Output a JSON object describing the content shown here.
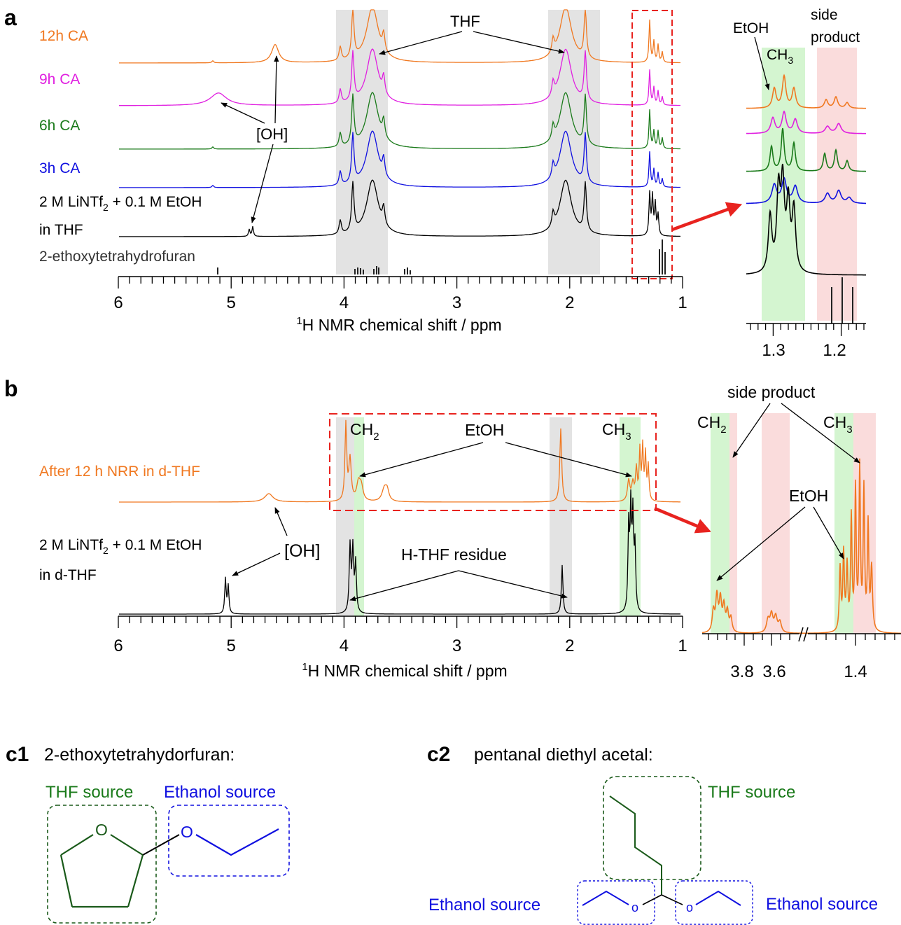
{
  "panel_a": {
    "panel_label": "a",
    "traces": [
      {
        "label": "12h CA",
        "color": "#f07820"
      },
      {
        "label": "9h CA",
        "color": "#e020e0"
      },
      {
        "label": "6h CA",
        "color": "#1a7a1a"
      },
      {
        "label": "3h CA",
        "color": "#1010e0"
      },
      {
        "label": "2 M LiNTf2 + 0.1 M EtOH in THF",
        "color": "#000000"
      }
    ],
    "ref_label": "2-ethoxytetrahydrofuran",
    "annotations": {
      "thf": "THF",
      "oh": "[OH]"
    },
    "xlabel": "1H NMR chemical shift / ppm",
    "ticks": [
      "6",
      "5",
      "4",
      "3",
      "2",
      "1"
    ],
    "inset": {
      "etoh": "EtOH",
      "ch3": "CH3",
      "side_line1": "side",
      "side_line2": "product",
      "ticks": [
        "1.3",
        "1.2"
      ]
    }
  },
  "panel_b": {
    "panel_label": "b",
    "traces": [
      {
        "label": "After 12 h NRR in d-THF",
        "color": "#f07820"
      },
      {
        "label": "2 M LiNTf2 + 0.1 M EtOH in d-THF",
        "color": "#000000"
      }
    ],
    "annotations": {
      "ch2": "CH2",
      "ch3": "CH3",
      "etoh": "EtOH",
      "oh": "[OH]",
      "hthf": "H-THF residue"
    },
    "xlabel": "1H NMR chemical shift / ppm",
    "ticks": [
      "6",
      "5",
      "4",
      "3",
      "2",
      "1"
    ],
    "inset": {
      "side_product": "side product",
      "ch2": "CH2",
      "ch3": "CH3",
      "etoh": "EtOH",
      "ticks": [
        "3.8",
        "3.6",
        "1.4"
      ]
    }
  },
  "panel_c1": {
    "panel_label": "c1",
    "title": "2-ethoxytetrahydorfuran:",
    "thf_source": "THF source",
    "ethanol_source": "Ethanol source",
    "atom_o": "O"
  },
  "panel_c2": {
    "panel_label": "c2",
    "title": "pentanal diethyl acetal:",
    "thf_source": "THF source",
    "ethanol_source": "Ethanol source",
    "atom_o": "o"
  },
  "chart_data": [
    {
      "type": "line",
      "title": "",
      "xlabel": "1H NMR chemical shift / ppm",
      "ylabel": "",
      "xlim": [
        6,
        1
      ],
      "x_ticks": [
        6,
        5,
        4,
        3,
        2,
        1
      ],
      "series": [
        {
          "name": "12h CA",
          "peaks_ppm": [
            4.6,
            3.73,
            1.88,
            1.27
          ]
        },
        {
          "name": "9h CA",
          "peaks_ppm": [
            5.1,
            3.73,
            1.88,
            1.27
          ]
        },
        {
          "name": "6h CA",
          "peaks_ppm": [
            3.73,
            1.88,
            1.27
          ]
        },
        {
          "name": "3h CA",
          "peaks_ppm": [
            3.73,
            1.88,
            1.27
          ]
        },
        {
          "name": "2 M LiNTf2 + 0.1 M EtOH in THF",
          "peaks_ppm": [
            4.8,
            3.73,
            1.88,
            1.27
          ]
        },
        {
          "name": "2-ethoxytetrahydrofuran",
          "peaks_ppm": [
            5.12,
            3.85,
            3.72,
            3.43,
            1.21,
            1.19,
            1.17
          ]
        }
      ],
      "shaded_regions_ppm": [
        [
          4.05,
          3.6
        ],
        [
          2.2,
          1.75
        ]
      ]
    },
    {
      "type": "line",
      "title": "",
      "xlabel": "",
      "ylabel": "",
      "x_ticks": [
        1.3,
        1.2
      ],
      "series": [
        {
          "name": "12h CA"
        },
        {
          "name": "9h CA"
        },
        {
          "name": "6h CA"
        },
        {
          "name": "3h CA"
        },
        {
          "name": "2 M LiNTf2 + 0.1 M EtOH in THF"
        },
        {
          "name": "2-ethoxytetrahydrofuran"
        }
      ]
    },
    {
      "type": "line",
      "title": "",
      "xlabel": "1H NMR chemical shift / ppm",
      "ylabel": "",
      "xlim": [
        6,
        1
      ],
      "x_ticks": [
        6,
        5,
        4,
        3,
        2,
        1
      ],
      "series": [
        {
          "name": "After 12 h NRR in d-THF",
          "peaks_ppm": [
            4.67,
            3.98,
            3.9,
            3.65,
            2.08,
            1.45,
            1.38
          ]
        },
        {
          "name": "2 M LiNTf2 + 0.1 M EtOH in d-THF",
          "peaks_ppm": [
            5.04,
            3.94,
            2.08,
            1.47
          ]
        }
      ],
      "shaded_regions_ppm": [
        [
          4.05,
          3.85
        ],
        [
          2.2,
          2.0
        ],
        [
          1.6,
          1.38
        ]
      ]
    },
    {
      "type": "line",
      "title": "",
      "xlabel": "",
      "ylabel": "",
      "x_ticks": [
        3.8,
        3.6,
        1.4
      ],
      "series": [
        {
          "name": "After 12 h NRR in d-THF"
        }
      ]
    }
  ]
}
